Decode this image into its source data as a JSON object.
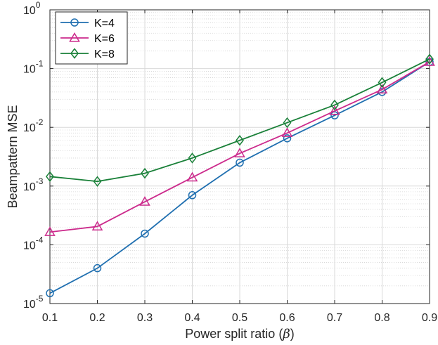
{
  "chart_data": {
    "type": "line",
    "title": "",
    "xlabel": "Power split ratio (β)",
    "xlabel_main": "Power split ratio (",
    "xlabel_symbol": "β",
    "xlabel_close": ")",
    "ylabel": "Beampattern MSE",
    "yscale": "log",
    "xlim": [
      0.1,
      0.9
    ],
    "ylim": [
      1e-05,
      1
    ],
    "x": [
      0.1,
      0.2,
      0.3,
      0.4,
      0.5,
      0.6,
      0.7,
      0.8,
      0.9
    ],
    "xticks": [
      "0.1",
      "0.2",
      "0.3",
      "0.4",
      "0.5",
      "0.6",
      "0.7",
      "0.8",
      "0.9"
    ],
    "yticks": [
      {
        "base": "10",
        "exp": "-5",
        "value": 1e-05
      },
      {
        "base": "10",
        "exp": "-4",
        "value": 0.0001
      },
      {
        "base": "10",
        "exp": "-3",
        "value": 0.001
      },
      {
        "base": "10",
        "exp": "-2",
        "value": 0.01
      },
      {
        "base": "10",
        "exp": "-1",
        "value": 0.1
      },
      {
        "base": "10",
        "exp": "0",
        "value": 1
      }
    ],
    "grid": true,
    "legend_position": "top-left",
    "series": [
      {
        "name": "K=4",
        "color": "#1f6fb0",
        "marker": "circle",
        "values": [
          1.5e-05,
          4e-05,
          0.000155,
          0.0007,
          0.0025,
          0.0065,
          0.016,
          0.04,
          0.13
        ]
      },
      {
        "name": "K=6",
        "color": "#cc2a8c",
        "marker": "triangle",
        "values": [
          0.000165,
          0.000205,
          0.00054,
          0.0014,
          0.0036,
          0.008,
          0.019,
          0.044,
          0.13
        ]
      },
      {
        "name": "K=8",
        "color": "#198038",
        "marker": "diamond",
        "values": [
          0.00145,
          0.0012,
          0.00165,
          0.003,
          0.006,
          0.012,
          0.024,
          0.058,
          0.145
        ]
      }
    ]
  }
}
